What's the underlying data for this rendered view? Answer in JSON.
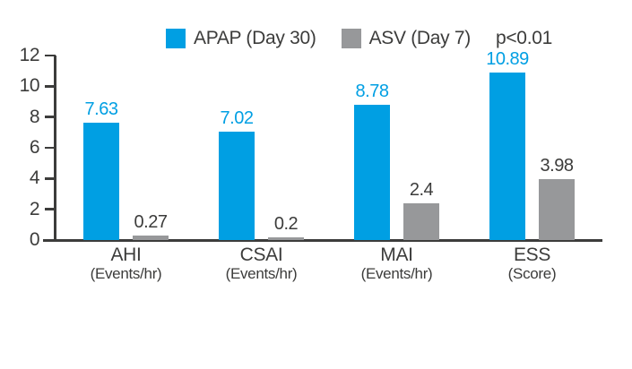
{
  "colors": {
    "apap_blue": "#009FE3",
    "asv_gray": "#97989A",
    "axis_dark": "#3C3C3B",
    "background": "#FFFFFF"
  },
  "legend": {
    "items": [
      {
        "label": "APAP (Day 30)",
        "color": "#009FE3"
      },
      {
        "label": "ASV (Day 7)",
        "color": "#97989A"
      }
    ],
    "note": "p<0.01"
  },
  "chart_data": {
    "type": "bar",
    "categories": [
      "AHI",
      "CSAI",
      "MAI",
      "ESS"
    ],
    "category_units": [
      "(Events/hr)",
      "(Events/hr)",
      "(Events/hr)",
      "(Score)"
    ],
    "series": [
      {
        "name": "APAP (Day 30)",
        "color": "#009FE3",
        "label_color": "#009FE3",
        "values": [
          7.63,
          7.02,
          8.78,
          10.89
        ]
      },
      {
        "name": "ASV (Day 7)",
        "color": "#97989A",
        "label_color": "#3C3C3B",
        "values": [
          0.27,
          0.2,
          2.4,
          3.98
        ]
      }
    ],
    "value_labels": [
      [
        "7.63",
        "7.02",
        "8.78",
        "10.89"
      ],
      [
        "0.27",
        "0.2",
        "2.4",
        "3.98"
      ]
    ],
    "ytick_labels": [
      "0",
      "2",
      "4",
      "6",
      "8",
      "10",
      "12"
    ],
    "ylim": [
      0,
      12
    ],
    "ytick_step": 2,
    "annotation": "p<0.01",
    "grid": false,
    "legend_position": "top",
    "title": "",
    "xlabel": "",
    "ylabel": ""
  }
}
